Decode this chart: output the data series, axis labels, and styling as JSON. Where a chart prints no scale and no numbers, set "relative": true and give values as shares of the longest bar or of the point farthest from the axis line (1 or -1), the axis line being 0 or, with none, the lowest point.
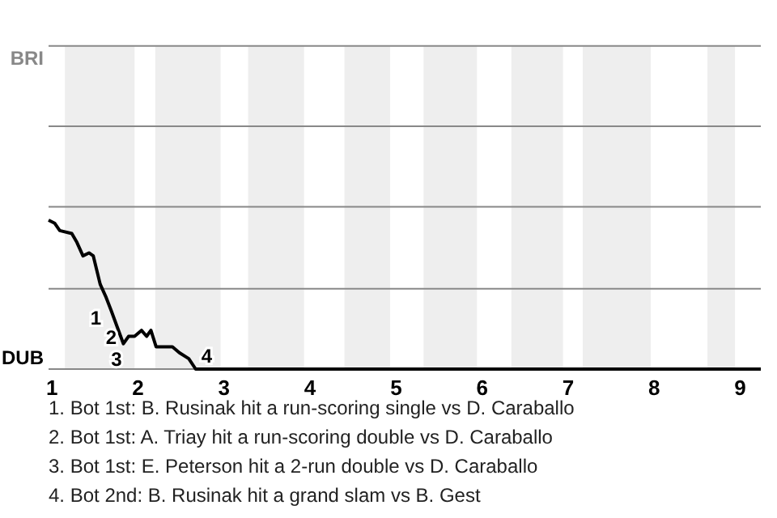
{
  "chart_data": {
    "type": "line",
    "x": [
      0.96,
      1.03,
      1.09,
      1.23,
      1.29,
      1.36,
      1.43,
      1.48,
      1.56,
      1.63,
      1.69,
      1.76,
      1.83,
      1.89,
      1.96,
      2.04,
      2.1,
      2.15,
      2.21,
      2.4,
      2.48,
      2.59,
      2.67,
      3,
      4,
      5,
      6,
      7,
      8,
      9,
      9.24
    ],
    "series": [
      {
        "color": "#000000",
        "values": [
          1,
          0.98,
          0.93,
          0.91,
          0.85,
          0.76,
          0.78,
          0.76,
          0.57,
          0.48,
          0.39,
          0.28,
          0.17,
          0.22,
          0.22,
          0.26,
          0.22,
          0.26,
          0.15,
          0.15,
          0.11,
          0.07,
          0,
          0,
          0,
          0,
          0,
          0,
          0,
          0,
          0
        ]
      }
    ],
    "relative": true,
    "xlim": [
      0.96,
      9.24
    ],
    "xticks": [
      1,
      2,
      3,
      4,
      5,
      6,
      7,
      8,
      9
    ],
    "ref_lines": [
      {
        "axis": "y",
        "value": 0.54,
        "color": "#888888"
      },
      {
        "axis": "y",
        "value": 1.09,
        "color": "#888888"
      },
      {
        "axis": "y",
        "value": 1.63,
        "color": "#888888"
      },
      {
        "axis": "y",
        "value": 2.17,
        "color": "#888888"
      }
    ],
    "bands": [
      {
        "axis": "x",
        "from": 1.15,
        "to": 1.96,
        "color": "#eeeeee"
      },
      {
        "axis": "x",
        "from": 2.2,
        "to": 2.96,
        "color": "#eeeeee"
      },
      {
        "axis": "x",
        "from": 3.28,
        "to": 3.93,
        "color": "#eeeeee"
      },
      {
        "axis": "x",
        "from": 4.4,
        "to": 4.93,
        "color": "#eeeeee"
      },
      {
        "axis": "x",
        "from": 5.32,
        "to": 5.94,
        "color": "#eeeeee"
      },
      {
        "axis": "x",
        "from": 6.34,
        "to": 6.94,
        "color": "#eeeeee"
      },
      {
        "axis": "x",
        "from": 7.17,
        "to": 7.96,
        "color": "#eeeeee"
      },
      {
        "axis": "x",
        "from": 8.62,
        "to": 8.94,
        "color": "#eeeeee"
      }
    ],
    "annotations": [
      "BRI",
      "DUB",
      {
        "text": "1",
        "x": 1.61,
        "y": 0.43
      },
      {
        "text": "2",
        "x": 1.79,
        "y": 0.3
      },
      {
        "text": "3",
        "x": 1.85,
        "y": 0.15
      },
      {
        "text": "4",
        "x": 2.68,
        "y": 0
      },
      "1. Bot 1st: B. Rusinak hit a run-scoring single vs D. Caraballo",
      "2. Bot 1st: A. Triay hit a run-scoring double vs D. Caraballo",
      "3. Bot 1st: E. Peterson hit a 2-run double vs D. Caraballo",
      "4. Bot 2nd: B. Rusinak hit a grand slam vs B. Gest"
    ],
    "marker": "none",
    "line_style": "solid"
  }
}
